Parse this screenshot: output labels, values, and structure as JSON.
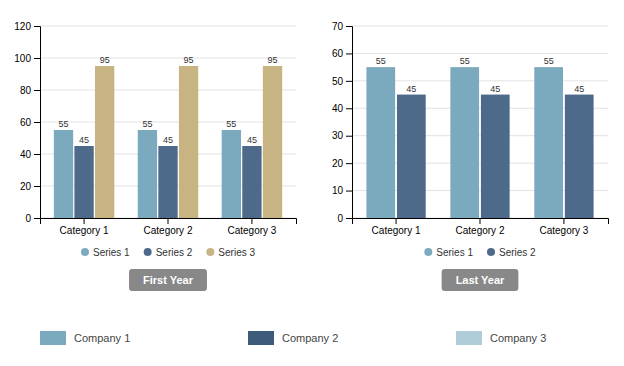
{
  "chart_data": [
    {
      "type": "bar",
      "title": "First Year",
      "categories": [
        "Category 1",
        "Category 2",
        "Category 3"
      ],
      "series": [
        {
          "name": "Series 1",
          "color": "#7baabe",
          "values": [
            55,
            55,
            55
          ]
        },
        {
          "name": "Series 2",
          "color": "#4d6a8a",
          "values": [
            45,
            45,
            45
          ]
        },
        {
          "name": "Series 3",
          "color": "#c8b482",
          "values": [
            95,
            95,
            95
          ]
        }
      ],
      "ylim": [
        0,
        120
      ],
      "yticks": [
        0,
        20,
        40,
        60,
        80,
        100,
        120
      ],
      "grid": true,
      "legend": "bottom",
      "data_labels": true
    },
    {
      "type": "bar",
      "title": "Last Year",
      "categories": [
        "Category 1",
        "Category 2",
        "Category 3"
      ],
      "series": [
        {
          "name": "Series 1",
          "color": "#7baabe",
          "values": [
            55,
            55,
            55
          ]
        },
        {
          "name": "Series 2",
          "color": "#4d6a8a",
          "values": [
            45,
            45,
            45
          ]
        }
      ],
      "ylim": [
        0,
        70
      ],
      "yticks": [
        0,
        10,
        20,
        30,
        40,
        50,
        60,
        70
      ],
      "grid": true,
      "legend": "bottom",
      "data_labels": true
    }
  ],
  "annotations": [
    {
      "text": "Company 1",
      "color": "#7baabe"
    },
    {
      "text": "Company 2",
      "color": "#3d5a7a"
    },
    {
      "text": "Company 3",
      "color": "#aecdd8"
    }
  ]
}
